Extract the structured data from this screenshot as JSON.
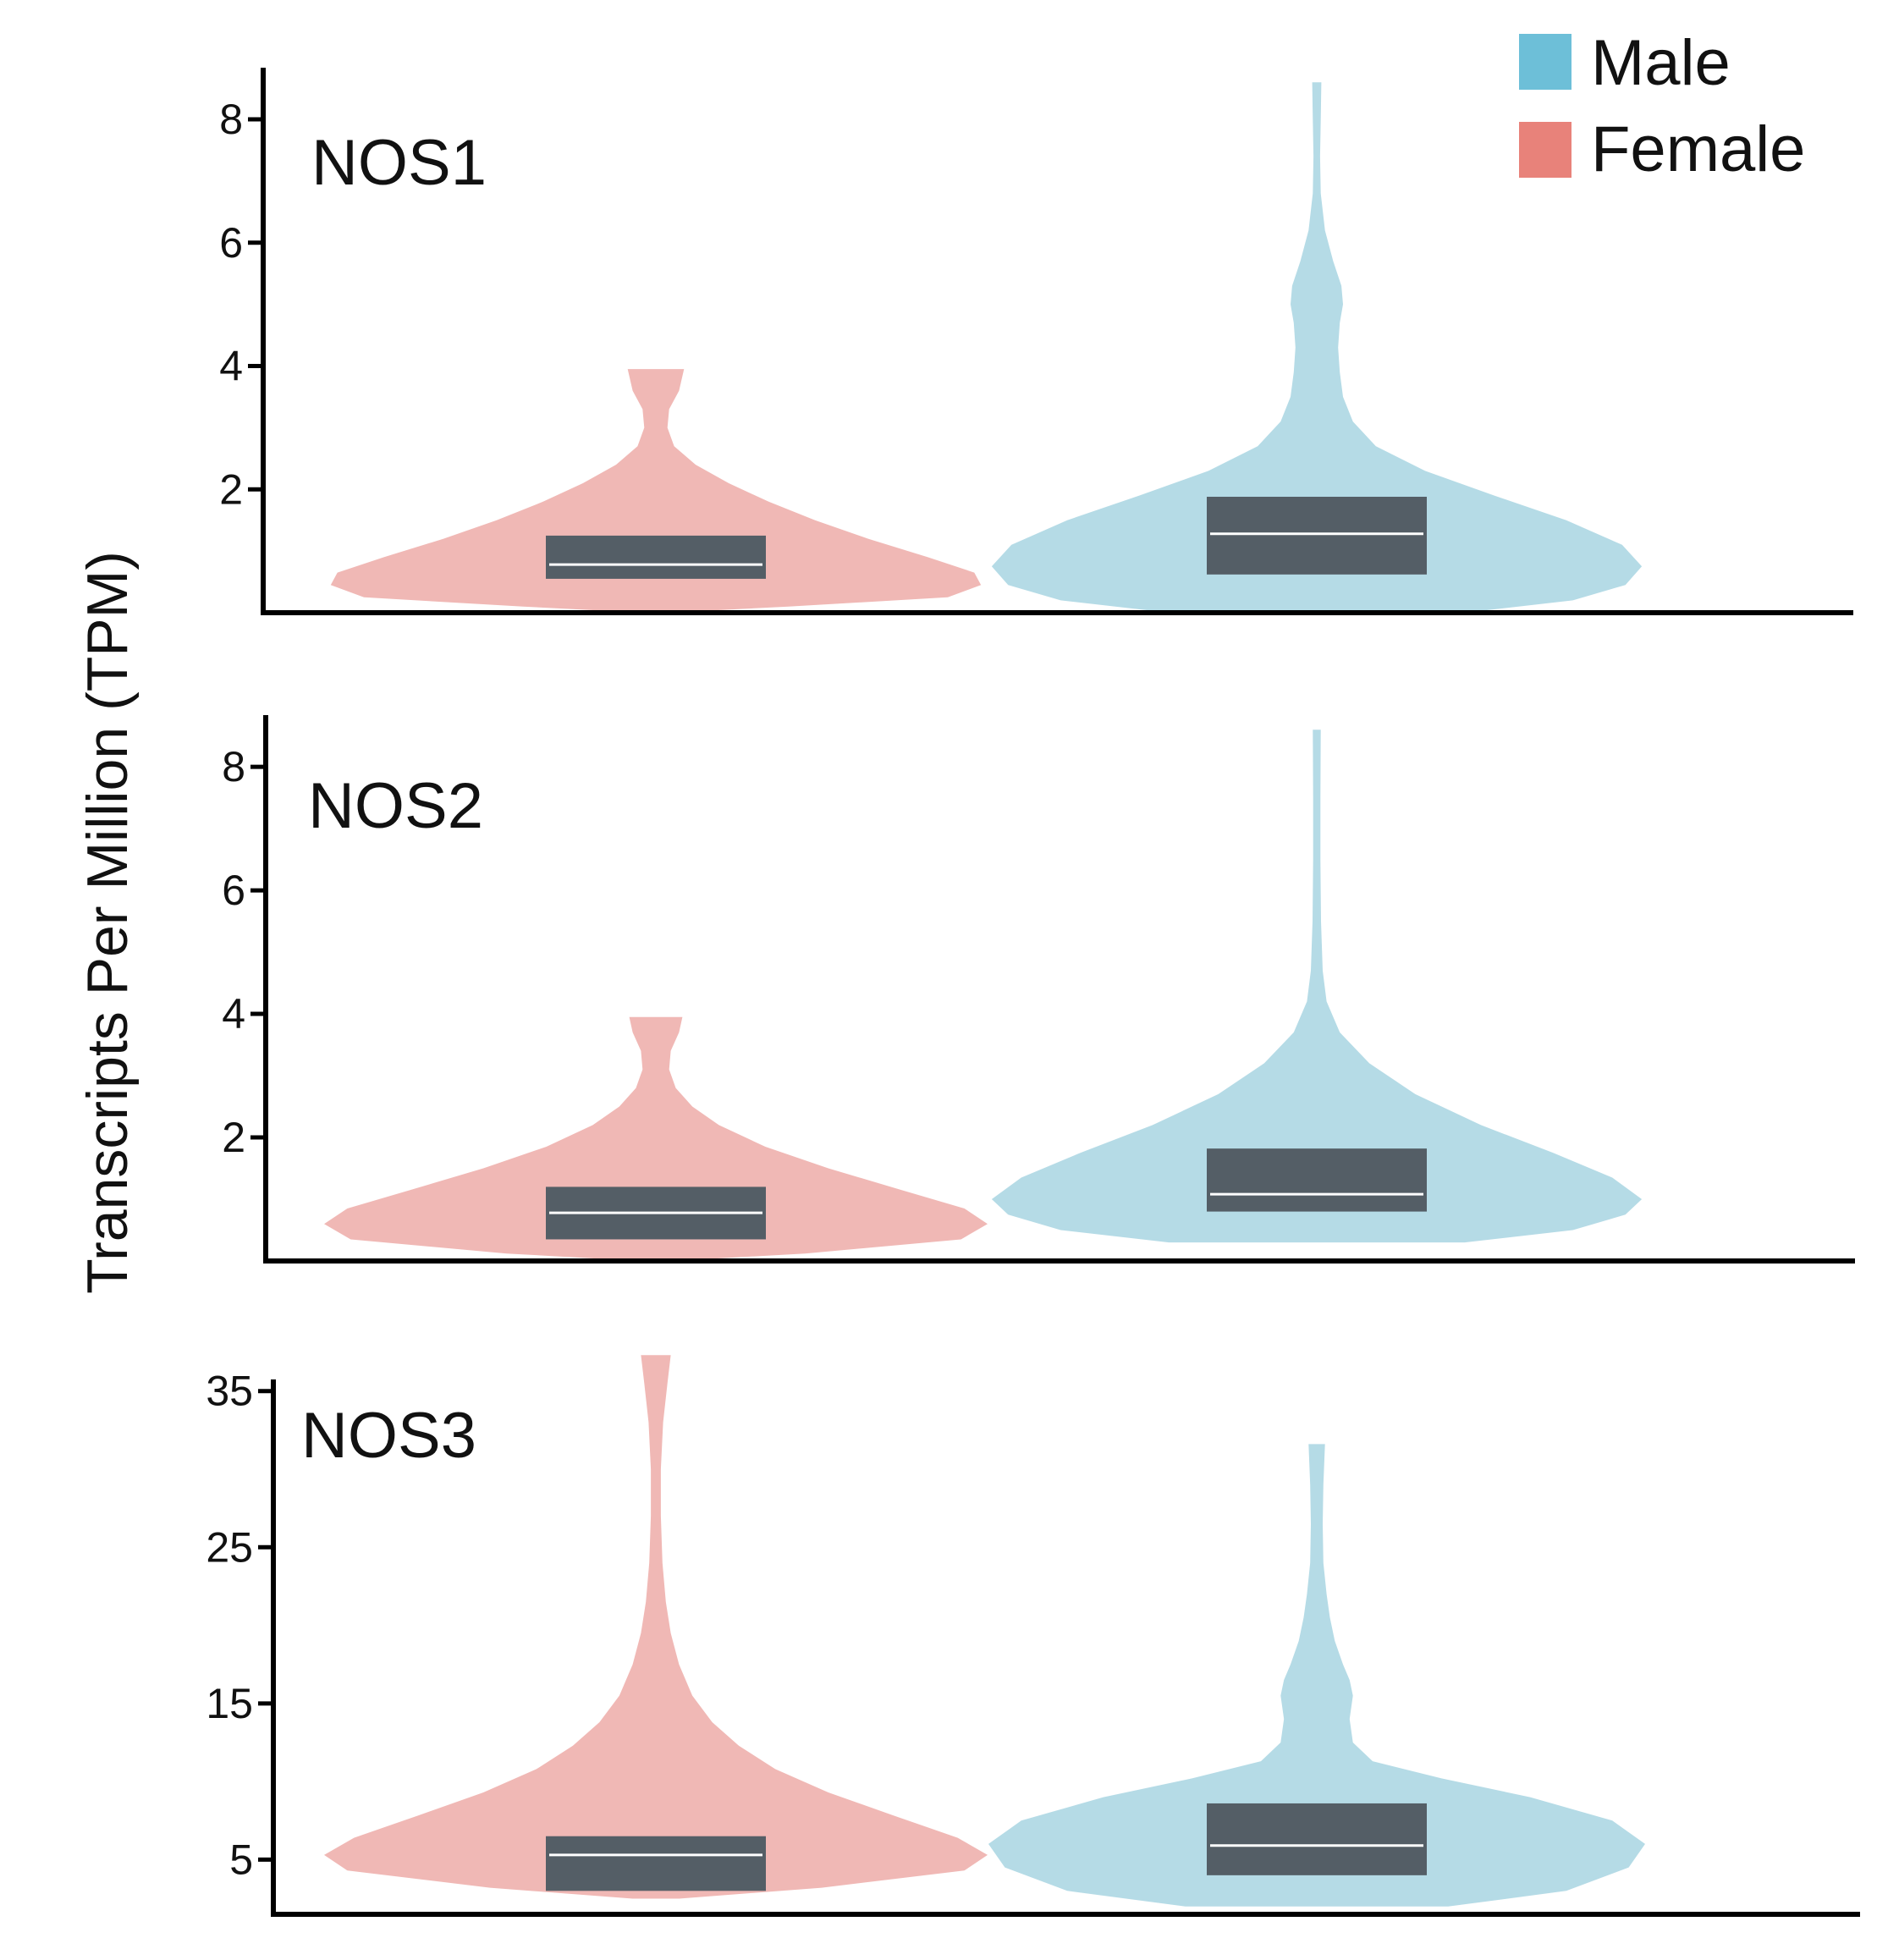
{
  "chart_data": {
    "type": "violin",
    "ylabel": "Transcripts Per Million (TPM)",
    "legend": {
      "placement": "top-right",
      "entries": [
        {
          "name": "Male",
          "color": "#6dbfd8"
        },
        {
          "name": "Female",
          "color": "#e8827a"
        }
      ]
    },
    "fill_colors": {
      "Female": "#f0b8b5",
      "Male": "#b5dbe6",
      "box": "#545e66",
      "median": "#ffffff"
    },
    "panels": [
      {
        "gene": "NOS1",
        "yticks": [
          2,
          4,
          6,
          8
        ],
        "ytick_labels": [
          "2",
          "4",
          "6",
          "8"
        ],
        "ylim": [
          0.0,
          8.7
        ],
        "groups": [
          {
            "name": "Female",
            "box": {
              "q1": 0.55,
              "median": 0.78,
              "q3": 1.25
            },
            "violin_min": 0.0,
            "violin_max": 3.95,
            "profile": [
              [
                0.0,
                0.04
              ],
              [
                0.1,
                0.4
              ],
              [
                0.25,
                0.88
              ],
              [
                0.45,
                0.98
              ],
              [
                0.65,
                0.96
              ],
              [
                0.9,
                0.82
              ],
              [
                1.2,
                0.64
              ],
              [
                1.5,
                0.48
              ],
              [
                1.8,
                0.34
              ],
              [
                2.1,
                0.22
              ],
              [
                2.4,
                0.12
              ],
              [
                2.7,
                0.055
              ],
              [
                3.0,
                0.035
              ],
              [
                3.3,
                0.04
              ],
              [
                3.6,
                0.07
              ],
              [
                3.95,
                0.085
              ]
            ]
          },
          {
            "name": "Male",
            "box": {
              "q1": 0.62,
              "median": 1.28,
              "q3": 1.88
            },
            "violin_min": 0.0,
            "violin_max": 8.6,
            "profile": [
              [
                0.0,
                0.45
              ],
              [
                0.2,
                0.78
              ],
              [
                0.45,
                0.94
              ],
              [
                0.75,
                0.99
              ],
              [
                1.1,
                0.93
              ],
              [
                1.5,
                0.76
              ],
              [
                1.9,
                0.54
              ],
              [
                2.3,
                0.33
              ],
              [
                2.7,
                0.18
              ],
              [
                3.1,
                0.11
              ],
              [
                3.5,
                0.08
              ],
              [
                3.9,
                0.07
              ],
              [
                4.3,
                0.065
              ],
              [
                4.7,
                0.07
              ],
              [
                5.0,
                0.08
              ],
              [
                5.3,
                0.075
              ],
              [
                5.7,
                0.05
              ],
              [
                6.2,
                0.025
              ],
              [
                6.8,
                0.012
              ],
              [
                7.4,
                0.01
              ],
              [
                8.0,
                0.012
              ],
              [
                8.6,
                0.014
              ]
            ]
          }
        ]
      },
      {
        "gene": "NOS2",
        "yticks": [
          2,
          4,
          6,
          8
        ],
        "ytick_labels": [
          "2",
          "4",
          "6",
          "8"
        ],
        "ylim": [
          0.0,
          8.7
        ],
        "groups": [
          {
            "name": "Female",
            "box": {
              "q1": 0.35,
              "median": 0.78,
              "q3": 1.2
            },
            "violin_min": 0.0,
            "violin_max": 3.95,
            "profile": [
              [
                0.0,
                0.05
              ],
              [
                0.12,
                0.45
              ],
              [
                0.35,
                0.92
              ],
              [
                0.6,
                1.0
              ],
              [
                0.85,
                0.93
              ],
              [
                1.15,
                0.74
              ],
              [
                1.5,
                0.52
              ],
              [
                1.85,
                0.33
              ],
              [
                2.2,
                0.19
              ],
              [
                2.5,
                0.11
              ],
              [
                2.8,
                0.06
              ],
              [
                3.1,
                0.04
              ],
              [
                3.4,
                0.045
              ],
              [
                3.7,
                0.07
              ],
              [
                3.95,
                0.08
              ]
            ]
          },
          {
            "name": "Male",
            "box": {
              "q1": 0.8,
              "median": 1.08,
              "q3": 1.82
            },
            "violin_min": 0.3,
            "violin_max": 8.6,
            "profile": [
              [
                0.3,
                0.45
              ],
              [
                0.5,
                0.78
              ],
              [
                0.75,
                0.94
              ],
              [
                1.0,
                0.99
              ],
              [
                1.35,
                0.9
              ],
              [
                1.75,
                0.72
              ],
              [
                2.2,
                0.5
              ],
              [
                2.7,
                0.3
              ],
              [
                3.2,
                0.16
              ],
              [
                3.7,
                0.07
              ],
              [
                4.2,
                0.03
              ],
              [
                4.7,
                0.018
              ],
              [
                5.5,
                0.013
              ],
              [
                6.5,
                0.011
              ],
              [
                7.5,
                0.011
              ],
              [
                8.6,
                0.012
              ]
            ]
          }
        ]
      },
      {
        "gene": "NOS3",
        "yticks": [
          5,
          15,
          25,
          35
        ],
        "ytick_labels": [
          "5",
          "15",
          "25",
          "35"
        ],
        "ylim": [
          1.5,
          35.2
        ],
        "groups": [
          {
            "name": "Female",
            "box": {
              "q1": 3.0,
              "median": 5.3,
              "q3": 6.5
            },
            "violin_min": 2.5,
            "violin_max": 37.3,
            "profile": [
              [
                2.5,
                0.07
              ],
              [
                3.2,
                0.5
              ],
              [
                4.3,
                0.93
              ],
              [
                5.3,
                1.0
              ],
              [
                6.4,
                0.91
              ],
              [
                7.8,
                0.72
              ],
              [
                9.3,
                0.52
              ],
              [
                10.8,
                0.36
              ],
              [
                12.3,
                0.25
              ],
              [
                13.8,
                0.17
              ],
              [
                15.5,
                0.11
              ],
              [
                17.5,
                0.07
              ],
              [
                19.5,
                0.045
              ],
              [
                21.5,
                0.03
              ],
              [
                24.0,
                0.02
              ],
              [
                27.0,
                0.015
              ],
              [
                30.0,
                0.015
              ],
              [
                33.0,
                0.022
              ],
              [
                35.5,
                0.035
              ],
              [
                37.3,
                0.045
              ]
            ]
          },
          {
            "name": "Male",
            "box": {
              "q1": 4.0,
              "median": 5.9,
              "q3": 8.6
            },
            "violin_min": 2.0,
            "violin_max": 31.6,
            "profile": [
              [
                2.0,
                0.4
              ],
              [
                3.0,
                0.76
              ],
              [
                4.5,
                0.95
              ],
              [
                6.0,
                1.0
              ],
              [
                7.5,
                0.9
              ],
              [
                9.0,
                0.65
              ],
              [
                10.2,
                0.38
              ],
              [
                11.3,
                0.17
              ],
              [
                12.5,
                0.11
              ],
              [
                14.0,
                0.1
              ],
              [
                15.5,
                0.11
              ],
              [
                16.5,
                0.1
              ],
              [
                17.5,
                0.08
              ],
              [
                19.0,
                0.055
              ],
              [
                20.5,
                0.04
              ],
              [
                22.0,
                0.03
              ],
              [
                24.0,
                0.02
              ],
              [
                26.5,
                0.018
              ],
              [
                29.0,
                0.02
              ],
              [
                31.6,
                0.025
              ]
            ]
          }
        ]
      }
    ]
  }
}
